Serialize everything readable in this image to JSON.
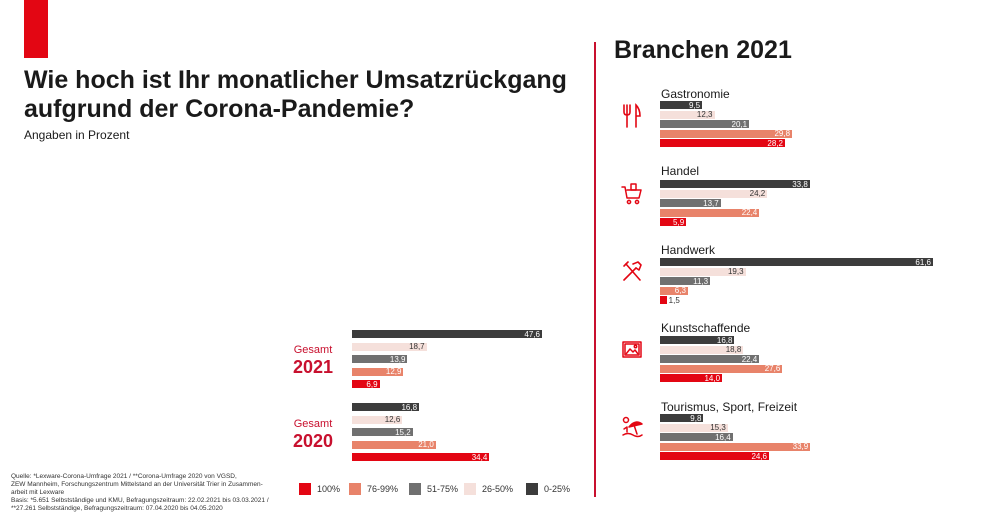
{
  "header": {
    "title_line1": "Wie hoch ist Ihr monatlicher Umsatzrückgang",
    "title_line2": "aufgrund der Corona-Pandemie?",
    "subtitle": "Angaben in Prozent",
    "branchen_title": "Branchen 2021"
  },
  "colors": {
    "c0_25": "#3c3c3c",
    "c26_50": "#f5e0db",
    "c51_75": "#707070",
    "c76_99": "#e8836a",
    "c100": "#e30613",
    "accent": "#c8102e"
  },
  "legend": [
    {
      "label": "100%",
      "color": "#e30613"
    },
    {
      "label": "76-99%",
      "color": "#e8836a"
    },
    {
      "label": "51-75%",
      "color": "#707070"
    },
    {
      "label": "26-50%",
      "color": "#f5e0db"
    },
    {
      "label": "0-25%",
      "color": "#3c3c3c"
    }
  ],
  "source": {
    "line1": "Quelle: *Lexware-Corona-Umfrage 2021 / **Corona-Umfrage 2020 von VGSD,",
    "line2": "ZEW Mannheim, Forschungszentrum Mittelstand an der Universität Trier in Zusammen-",
    "line3": "arbeit mit Lexware",
    "line4": "Basis: *5.651 Selbstständige und KMU, Befragungszeitraum: 22.02.2021 bis 03.03.2021 /",
    "line5": "**27.261 Selbstständige, Befragungszeitraum: 07.04.2020 bis 04.05.2020"
  },
  "chart_data": [
    {
      "type": "bar",
      "orientation": "horizontal",
      "series_order": [
        "0-25%",
        "26-50%",
        "51-75%",
        "76-99%",
        "100%"
      ],
      "groups": [
        {
          "label_small": "Gesamt",
          "label_big": "2021",
          "values": [
            47.6,
            18.7,
            13.9,
            12.9,
            6.9
          ],
          "labels": [
            "47,6",
            "18,7",
            "13,9",
            "12,9",
            "6,9"
          ]
        },
        {
          "label_small": "Gesamt",
          "label_big": "2020",
          "values": [
            16.8,
            12.6,
            15.2,
            21.0,
            34.4
          ],
          "labels": [
            "16,8",
            "12,6",
            "15,2",
            "21,0",
            "34,4"
          ]
        }
      ]
    },
    {
      "type": "bar",
      "orientation": "horizontal",
      "title": "Branchen 2021",
      "series_order": [
        "0-25%",
        "26-50%",
        "51-75%",
        "76-99%",
        "100%"
      ],
      "categories": [
        {
          "name": "Gastronomie",
          "icon": "cutlery-icon",
          "values": [
            9.5,
            12.3,
            20.1,
            29.8,
            28.2
          ],
          "labels": [
            "9,5",
            "12,3",
            "20,1",
            "29,8",
            "28,2"
          ]
        },
        {
          "name": "Handel",
          "icon": "shopping-cart-icon",
          "values": [
            33.8,
            24.2,
            13.7,
            22.4,
            5.9
          ],
          "labels": [
            "33,8",
            "24,2",
            "13,7",
            "22,4",
            "5,9"
          ]
        },
        {
          "name": "Handwerk",
          "icon": "tools-icon",
          "values": [
            61.6,
            19.3,
            11.3,
            6.3,
            1.5
          ],
          "labels": [
            "61,6",
            "19,3",
            "11,3",
            "6,3",
            "1,5"
          ]
        },
        {
          "name": "Kunstschaffende",
          "icon": "picture-icon",
          "values": [
            16.8,
            18.8,
            22.4,
            27.6,
            14.0
          ],
          "labels": [
            "16,8",
            "18,8",
            "22,4",
            "27,6",
            "14,0"
          ]
        },
        {
          "name": "Tourismus, Sport, Freizeit",
          "icon": "beach-icon",
          "values": [
            9.8,
            15.3,
            16.4,
            33.9,
            24.6
          ],
          "labels": [
            "9,8",
            "15,3",
            "16,4",
            "33,9",
            "24,6"
          ]
        }
      ]
    }
  ]
}
